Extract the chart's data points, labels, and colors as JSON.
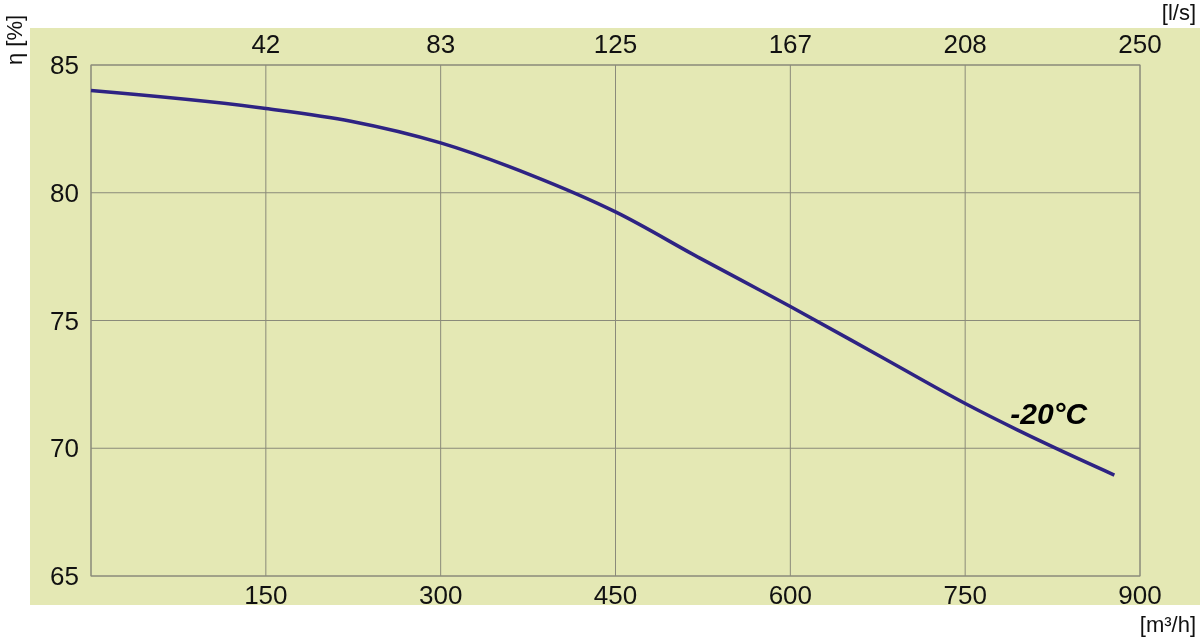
{
  "chart_data": {
    "type": "line",
    "ylabel": "η [%]",
    "xlabel": "[m³/h]",
    "x2label": "[l/s]",
    "xlim": [
      0,
      900
    ],
    "xticks": [
      {
        "value": 0,
        "label": null
      },
      150,
      300,
      450,
      600,
      750,
      900
    ],
    "x2lim": [
      0,
      250
    ],
    "x2ticks": [
      {
        "value": 41.67,
        "label": "42"
      },
      {
        "value": 83.33,
        "label": "83"
      },
      {
        "value": 125,
        "label": "125"
      },
      {
        "value": 166.67,
        "label": "167"
      },
      {
        "value": 208.33,
        "label": "208"
      },
      250
    ],
    "ylim": [
      65,
      85
    ],
    "yticks": [
      65,
      70,
      75,
      80,
      85
    ],
    "grid": true,
    "series": [
      {
        "name": "-20°C",
        "color": "#2e2383",
        "x": [
          0,
          150,
          223,
          300,
          377,
          450,
          522,
          600,
          677,
          750,
          823,
          878
        ],
        "values": [
          84.0,
          83.3,
          82.8,
          81.95,
          80.7,
          79.25,
          77.45,
          75.55,
          73.6,
          71.75,
          70.1,
          68.95
        ]
      }
    ]
  }
}
